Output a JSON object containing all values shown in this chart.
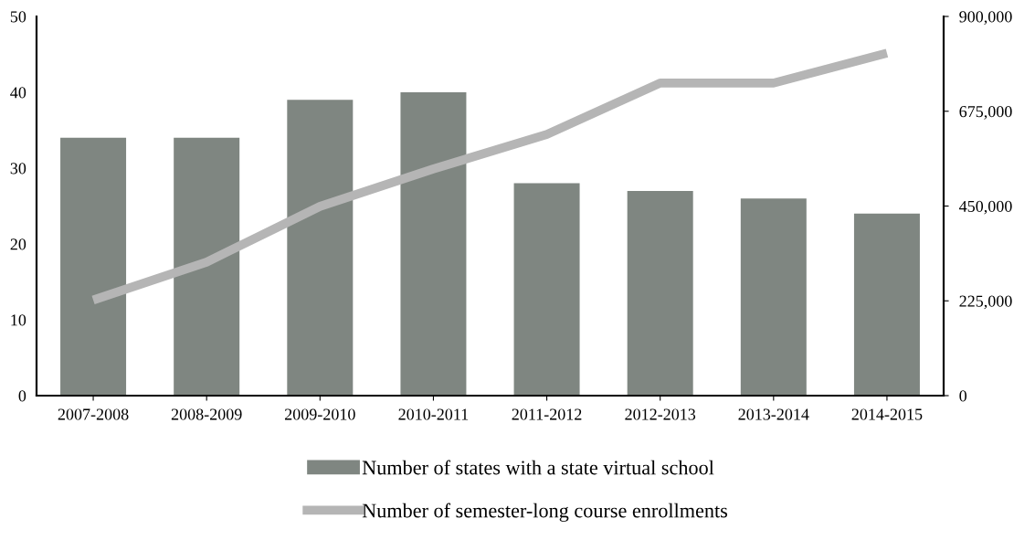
{
  "chart_data": {
    "type": "bar",
    "categories": [
      "2007-2008",
      "2008-2009",
      "2009-2010",
      "2010-2011",
      "2011-2012",
      "2012-2013",
      "2013-2014",
      "2014-2015"
    ],
    "series": [
      {
        "name": "Number of states with a state virtual school",
        "color": "#7f8681",
        "values": [
          34,
          34,
          39,
          40,
          28,
          27,
          26,
          24
        ]
      },
      {
        "name": "Number of semester-long course enrollments",
        "type": "line",
        "axis": "y2",
        "color": "#b5b5b5",
        "values": [
          227000,
          317000,
          449000,
          538000,
          620000,
          742000,
          742000,
          813000
        ]
      }
    ],
    "ylim": [
      0,
      50
    ],
    "yticks": [
      0,
      10,
      20,
      30,
      40,
      50
    ],
    "y2lim": [
      0,
      900000
    ],
    "y2ticks": [
      {
        "value": 0,
        "label": "0"
      },
      {
        "value": 225000,
        "label": "225,000"
      },
      {
        "value": 450000,
        "label": "450,000"
      },
      {
        "value": 675000,
        "label": "675,000"
      },
      {
        "value": 900000,
        "label": "900,000"
      }
    ],
    "grid": false,
    "legend": "bottom",
    "marker": "none",
    "line_style": "solid"
  }
}
